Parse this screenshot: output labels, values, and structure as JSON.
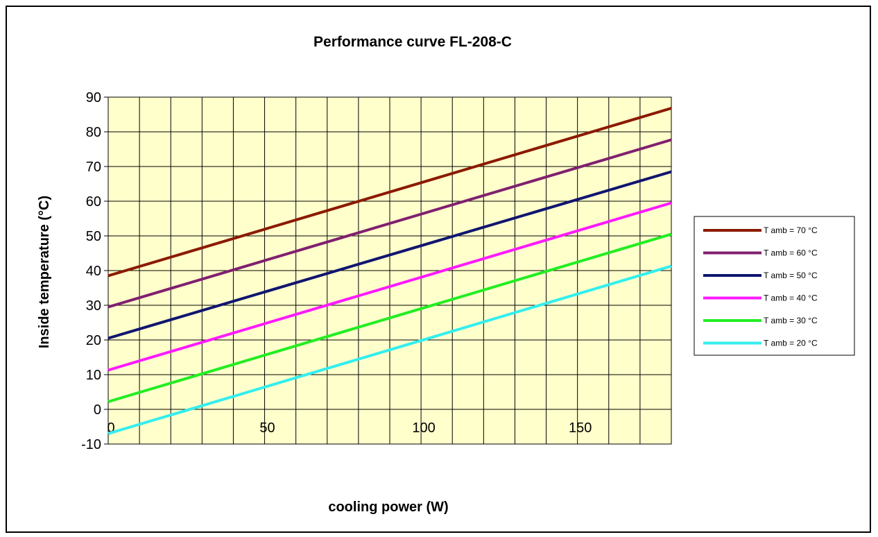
{
  "chart_data": {
    "type": "line",
    "title": "Performance curve FL-208-C",
    "xlabel": "cooling power (W)",
    "ylabel": "Inside temperature (°C)",
    "xlim": [
      0,
      180
    ],
    "ylim": [
      -10,
      90
    ],
    "x_ticks": [
      0,
      50,
      100,
      150
    ],
    "x_tick_labels": [
      "0",
      "50",
      "100",
      "150"
    ],
    "y_ticks": [
      -10,
      0,
      10,
      20,
      30,
      40,
      50,
      60,
      70,
      80,
      90
    ],
    "y_tick_labels": [
      "-10",
      "0",
      "10",
      "20",
      "30",
      "40",
      "50",
      "60",
      "70",
      "80",
      "90"
    ],
    "grid": true,
    "legend_position": "right",
    "plot_background": "#ffffcc",
    "x": [
      0,
      180
    ],
    "series": [
      {
        "name": "T amb = 70 °C",
        "color": "#8b1a00",
        "values": [
          38.5,
          86.8
        ]
      },
      {
        "name": "T amb = 60 °C",
        "color": "#80206f",
        "values": [
          29.5,
          77.7
        ]
      },
      {
        "name": "T amb = 50 °C",
        "color": "#101570",
        "values": [
          20.5,
          68.5
        ]
      },
      {
        "name": "T amb = 40 °C",
        "color": "#ff1aff",
        "values": [
          11.3,
          59.5
        ]
      },
      {
        "name": "T amb = 30 °C",
        "color": "#22ee22",
        "values": [
          2.2,
          50.5
        ]
      },
      {
        "name": "T amb = 20 °C",
        "color": "#33eeee",
        "values": [
          -7.0,
          41.3
        ]
      }
    ]
  }
}
